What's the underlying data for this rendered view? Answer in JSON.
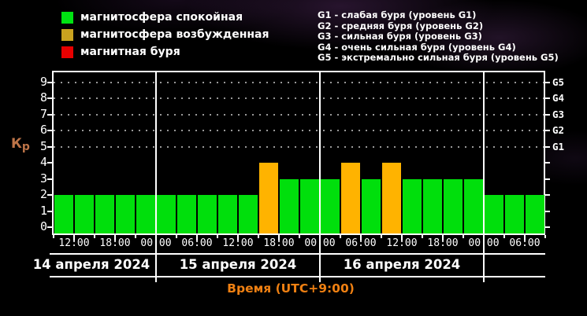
{
  "legend": {
    "items": [
      {
        "label": "магнитосфера спокойная",
        "color": "#00e312",
        "state": "quiet"
      },
      {
        "label": "магнитосфера возбужденная",
        "color": "#c9a21f",
        "state": "active"
      },
      {
        "label": "магнитная буря",
        "color": "#e80000",
        "state": "storm"
      }
    ]
  },
  "storm_scale": {
    "lines": [
      "G1 - слабая буря (уровень G1)",
      "G2 - средняя буря (уровень G2)",
      "G3 - сильная буря (уровень G3)",
      "G4 - очень сильная буря (уровень G4)",
      "G5 - экстремально сильная буря (уровень G5)"
    ]
  },
  "chart_data": {
    "type": "bar",
    "title": "",
    "ylabel": "Кр",
    "xlabel": "Время (UTC+9:00)",
    "ylim": [
      0,
      9.5
    ],
    "y_ticks": [
      0,
      1,
      2,
      3,
      4,
      5,
      6,
      7,
      8,
      9
    ],
    "g_levels": [
      {
        "label": "G1",
        "kp": 5
      },
      {
        "label": "G2",
        "kp": 6
      },
      {
        "label": "G3",
        "kp": 7
      },
      {
        "label": "G4",
        "kp": 8
      },
      {
        "label": "G5",
        "kp": 9
      }
    ],
    "hours_per_bar": 3,
    "x_major_tick_labels": [
      "12:00",
      "18:00",
      "00:00",
      "06:00",
      "12:00",
      "18:00",
      "00:00",
      "06:00",
      "12:00",
      "18:00",
      "00:00",
      "06:00"
    ],
    "days": [
      {
        "date": "14 апреля 2024",
        "start_hour": 9,
        "values": [
          2,
          2,
          2,
          2,
          2
        ],
        "states": [
          "quiet",
          "quiet",
          "quiet",
          "quiet",
          "quiet"
        ]
      },
      {
        "date": "15 апреля 2024",
        "start_hour": 0,
        "values": [
          2,
          2,
          2,
          2,
          2,
          4,
          3,
          3
        ],
        "states": [
          "quiet",
          "quiet",
          "quiet",
          "quiet",
          "quiet",
          "active",
          "quiet",
          "quiet"
        ]
      },
      {
        "date": "16 апреля 2024",
        "start_hour": 0,
        "values": [
          3,
          4,
          3,
          4,
          3,
          3,
          3,
          3
        ],
        "states": [
          "quiet",
          "active",
          "quiet",
          "active",
          "quiet",
          "quiet",
          "quiet",
          "quiet"
        ]
      },
      {
        "date": "",
        "start_hour": 0,
        "values": [
          2,
          2,
          2
        ],
        "states": [
          "quiet",
          "quiet",
          "quiet"
        ]
      }
    ],
    "state_colors": {
      "quiet": "#00df0c",
      "active": "#ffb300",
      "storm": "#e80000"
    }
  },
  "colors": {
    "kp_label": "#bd7448",
    "x_title": "#ef8012",
    "axis": "#ffffff"
  }
}
